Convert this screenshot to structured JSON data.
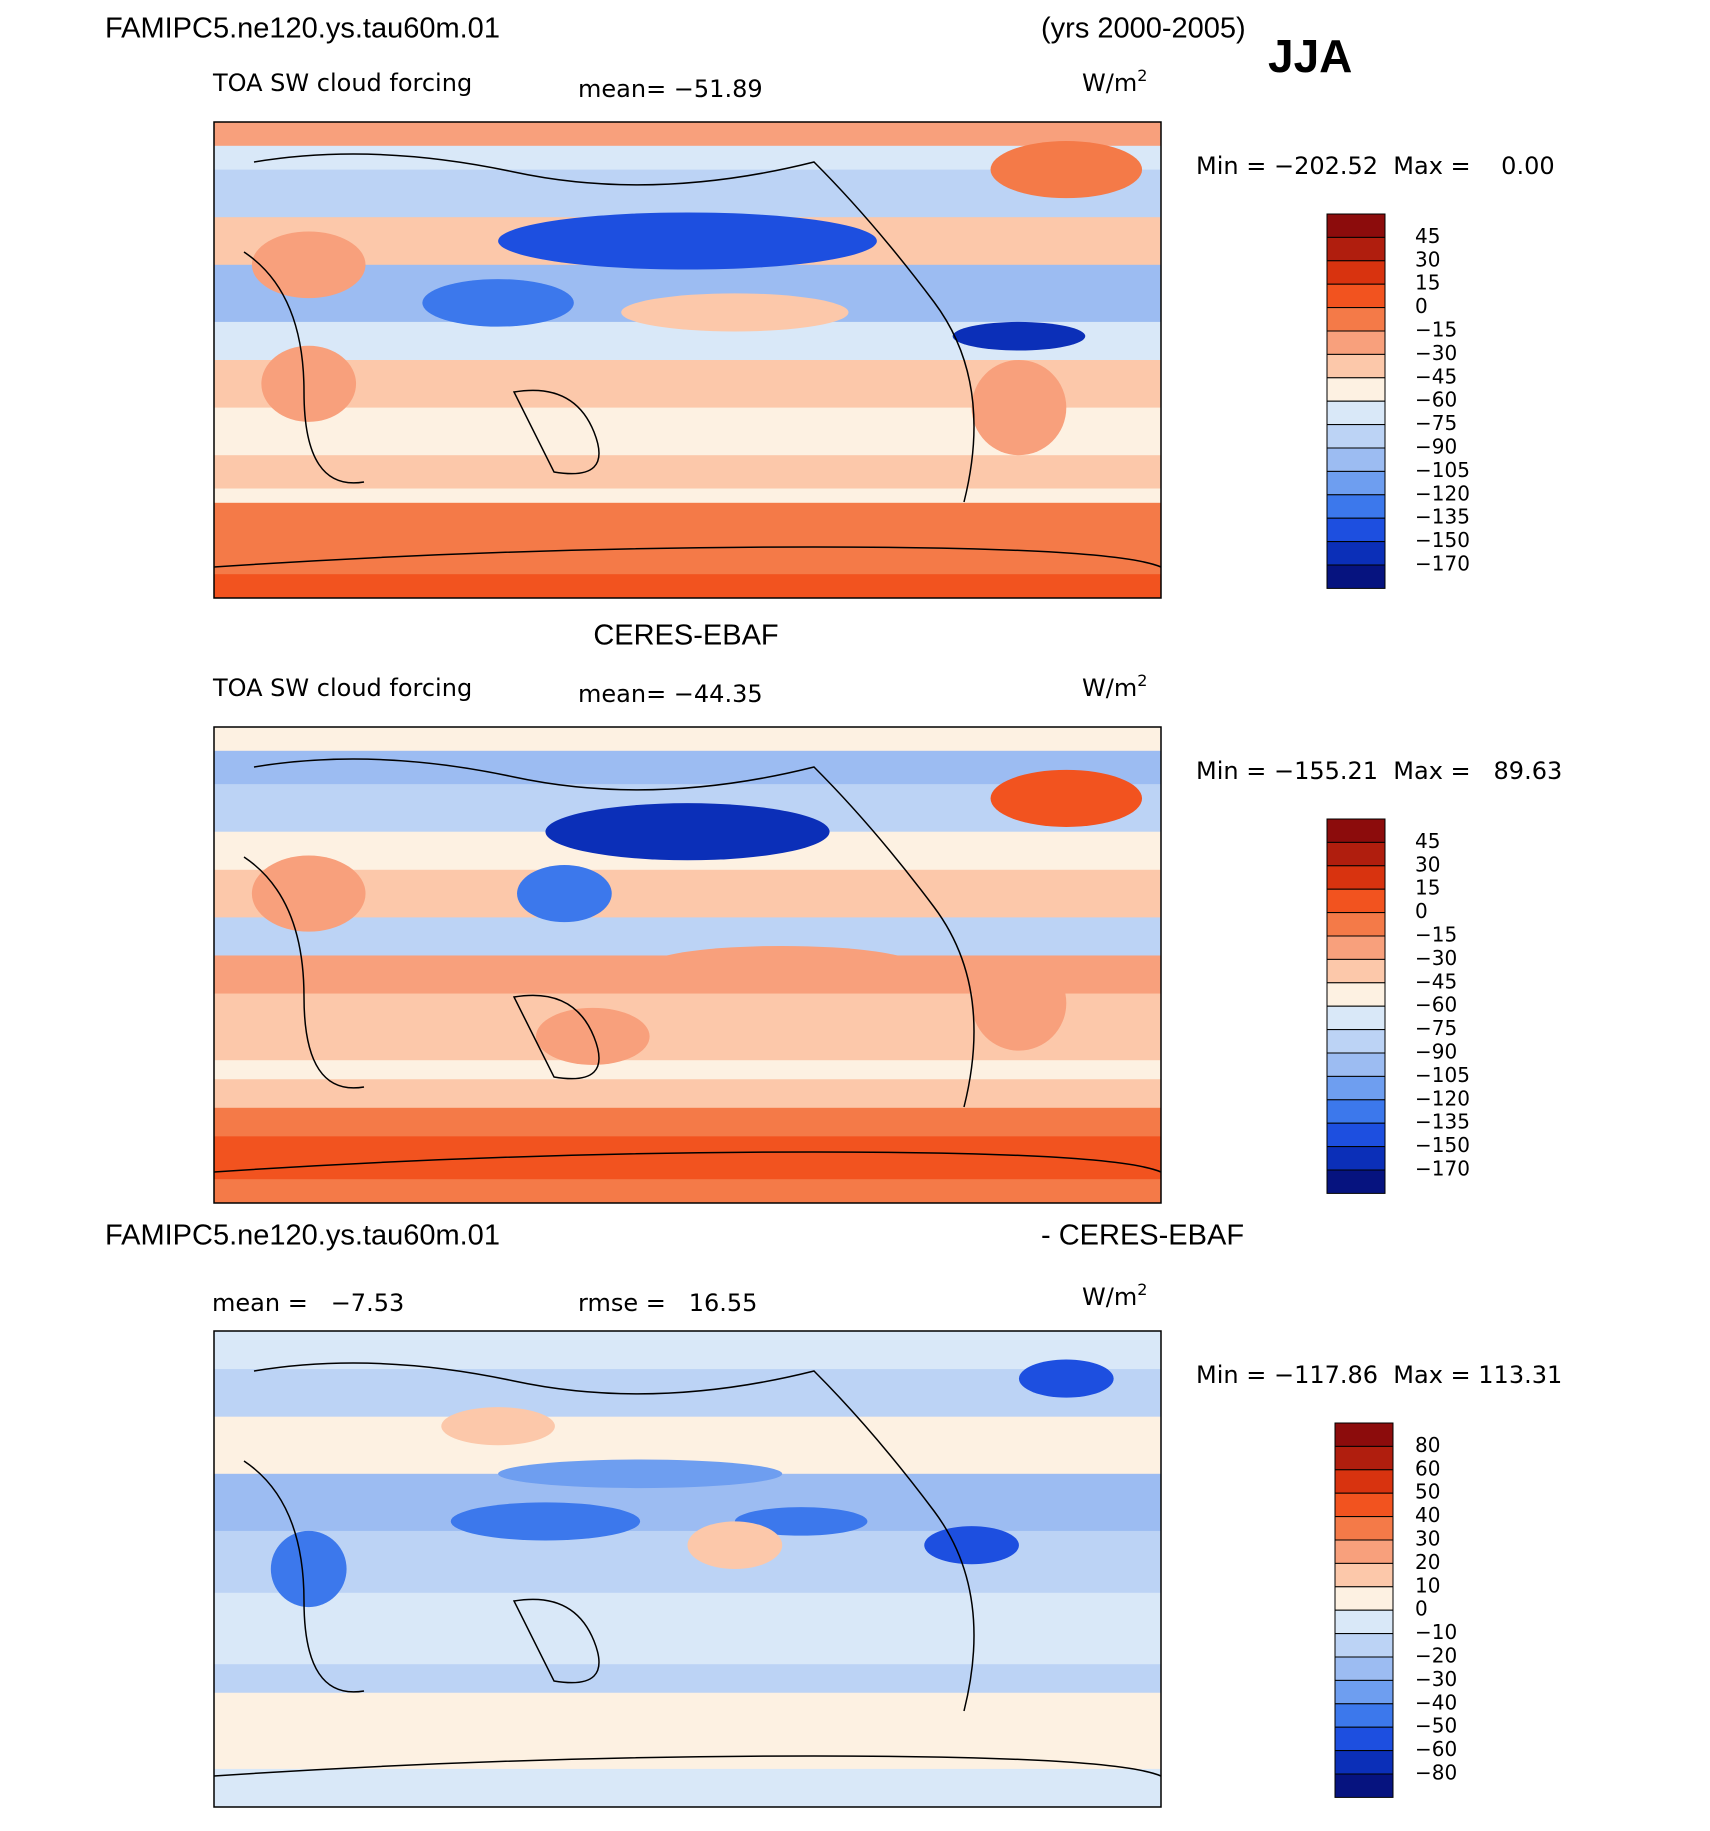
{
  "header": {
    "title": "FAMIPC5.ne120.ys.tau60m.01",
    "years": "(yrs 2000-2005)",
    "season": "JJA"
  },
  "palette": [
    "#8c0c0c",
    "#b01e0e",
    "#d8330f",
    "#f2531f",
    "#f47a48",
    "#f8a07c",
    "#fcc8aa",
    "#fdf1e2",
    "#d9e8f8",
    "#bcd3f5",
    "#9cbcf2",
    "#6e9ef0",
    "#3c78ec",
    "#1d4fe0",
    "#0b2fb8",
    "#06137f"
  ],
  "panels": [
    {
      "variable": "TOA SW cloud forcing",
      "mean": "mean= −51.89",
      "units": "W/m",
      "units_exponent": "2",
      "minmax": "Min = −202.52  Max =    0.00",
      "colorbar_labels": [
        "45",
        "30",
        "15",
        "0",
        "−15",
        "−30",
        "−45",
        "−60",
        "−75",
        "−90",
        "−105",
        "−120",
        "−135",
        "−150",
        "−170"
      ]
    },
    {
      "title": "CERES-EBAF",
      "variable": "TOA SW cloud forcing",
      "mean": "mean= −44.35",
      "units": "W/m",
      "units_exponent": "2",
      "minmax": "Min = −155.21  Max =   89.63",
      "colorbar_labels": [
        "45",
        "30",
        "15",
        "0",
        "−15",
        "−30",
        "−45",
        "−60",
        "−75",
        "−90",
        "−105",
        "−120",
        "−135",
        "−150",
        "−170"
      ]
    },
    {
      "title": "FAMIPC5.ne120.ys.tau60m.01",
      "title_right": "- CERES-EBAF",
      "mean": "mean =   −7.53",
      "rmse": "rmse =   16.55",
      "units": "W/m",
      "units_exponent": "2",
      "minmax": "Min = −117.86  Max = 113.31",
      "colorbar_labels": [
        "80",
        "60",
        "50",
        "40",
        "30",
        "20",
        "10",
        "0",
        "−10",
        "−20",
        "−30",
        "−40",
        "−50",
        "−60",
        "−80"
      ]
    }
  ]
}
